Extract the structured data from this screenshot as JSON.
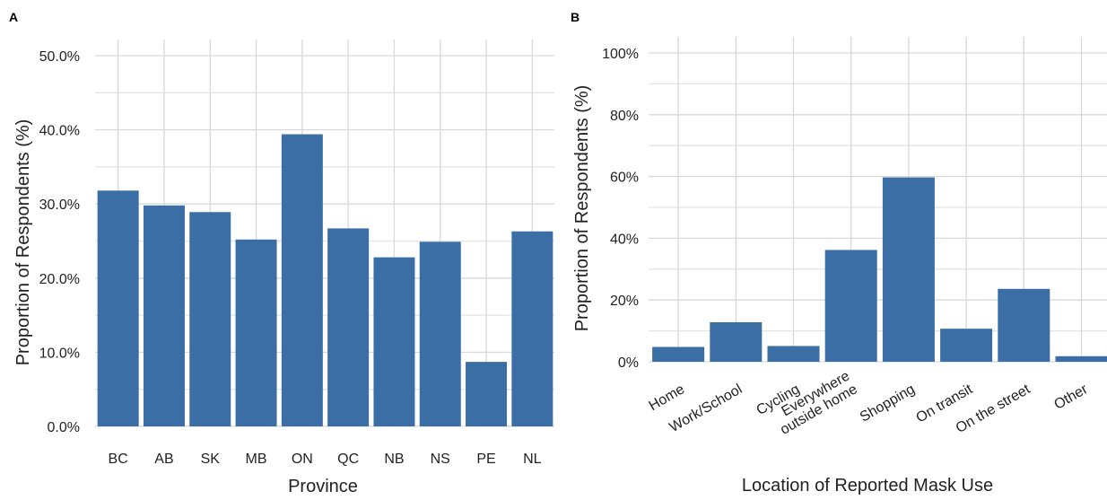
{
  "figure": {
    "bar_color": "#3a6ea5",
    "grid_color": "#d9d9d9"
  },
  "chart_data": [
    {
      "panel_tag": "A",
      "type": "bar",
      "categories": [
        "BC",
        "AB",
        "SK",
        "MB",
        "ON",
        "QC",
        "NB",
        "NS",
        "PE",
        "NL"
      ],
      "values": [
        31.8,
        29.8,
        28.9,
        25.2,
        39.4,
        26.7,
        22.8,
        24.9,
        8.7,
        26.3
      ],
      "xlabel": "Province",
      "ylabel": "Proportion of Respondents (%)",
      "ylim": [
        0,
        50
      ],
      "yticks": [
        0,
        10,
        20,
        30,
        40,
        50
      ],
      "ytick_labels": [
        "0.0%",
        "10.0%",
        "20.0%",
        "30.0%",
        "40.0%",
        "50.0%"
      ],
      "grid": true
    },
    {
      "panel_tag": "B",
      "type": "bar",
      "categories": [
        "Home",
        "Work/School",
        "Cycling",
        "Everywhere outside home",
        "Shopping",
        "On transit",
        "On the street",
        "Other"
      ],
      "category_lines": [
        [
          "Home"
        ],
        [
          "Work/School"
        ],
        [
          "Cycling"
        ],
        [
          "Everywhere",
          "outside home"
        ],
        [
          "Shopping"
        ],
        [
          "On transit"
        ],
        [
          "On the street"
        ],
        [
          "Other"
        ]
      ],
      "values": [
        4.8,
        12.8,
        5.1,
        36.2,
        59.7,
        10.7,
        23.6,
        1.8
      ],
      "xlabel": "Location of Reported Mask Use",
      "ylabel": "Proportion of Respondents (%)",
      "ylim": [
        0,
        100
      ],
      "yticks": [
        0,
        20,
        40,
        60,
        80,
        100
      ],
      "ytick_labels": [
        "0%",
        "20%",
        "40%",
        "60%",
        "80%",
        "100%"
      ],
      "grid": true
    }
  ]
}
